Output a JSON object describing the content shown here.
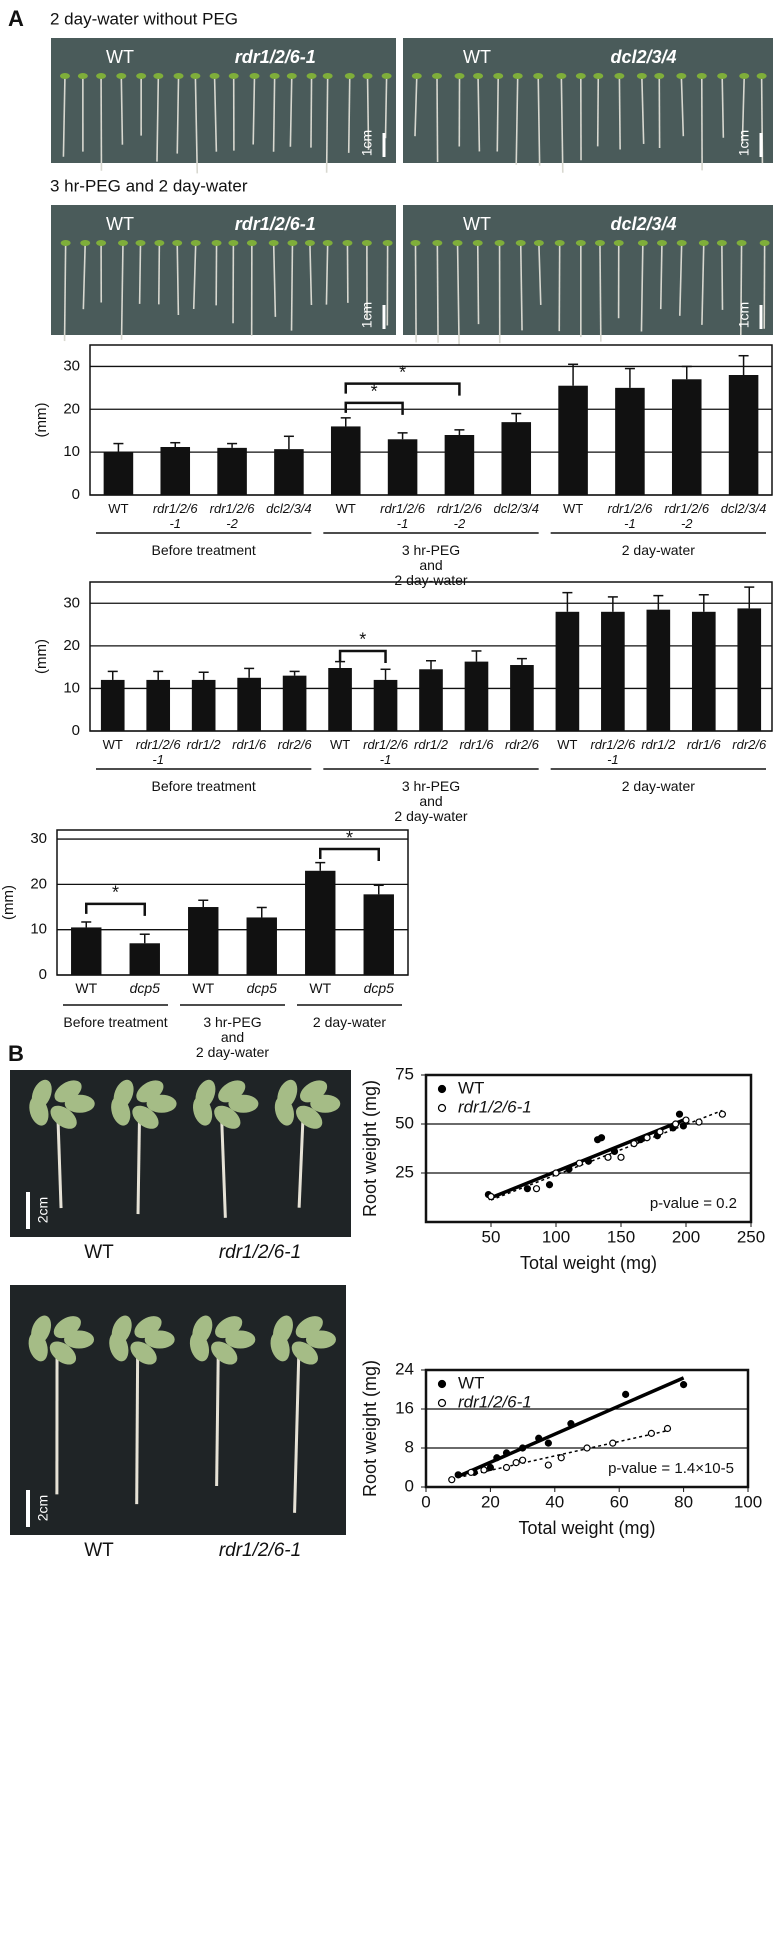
{
  "panel_a": {
    "label": "A",
    "rows": [
      {
        "title": "2 day-water without PEG",
        "photos": [
          {
            "genotypes": [
              "WT",
              "rdr1/2/6-1"
            ],
            "scale": "1cm"
          },
          {
            "genotypes": [
              "WT",
              "dcl2/3/4"
            ],
            "scale": "1cm"
          }
        ]
      },
      {
        "title": "3 hr-PEG and 2 day-water",
        "photos": [
          {
            "genotypes": [
              "WT",
              "rdr1/2/6-1"
            ],
            "scale": "1cm"
          },
          {
            "genotypes": [
              "WT",
              "dcl2/3/4"
            ],
            "scale": "1cm"
          }
        ]
      }
    ]
  },
  "chart_data": [
    {
      "type": "bar",
      "ylabel": "(mm)",
      "color": "#111111",
      "grid": true,
      "ylim": [
        0,
        35
      ],
      "yticks": [
        0,
        10,
        20,
        30
      ],
      "categories": [
        "WT",
        "rdr1/2/6\n-1",
        "rdr1/2/6\n-2",
        "dcl2/3/4",
        "WT",
        "rdr1/2/6\n-1",
        "rdr1/2/6\n-2",
        "dcl2/3/4",
        "WT",
        "rdr1/2/6\n-1",
        "rdr1/2/6\n-2",
        "dcl2/3/4"
      ],
      "groups": [
        "Before treatment",
        "3 hr-PEG\nand\n2 day-water",
        "2 day-water"
      ],
      "values": [
        10,
        11.2,
        11,
        10.7,
        16,
        13,
        14,
        17,
        25.5,
        25,
        27,
        28
      ],
      "errors": [
        2,
        1,
        1,
        3,
        2,
        1.5,
        1.2,
        2,
        5,
        4.5,
        3,
        4.5
      ],
      "annotations": [
        "*",
        "*"
      ]
    },
    {
      "type": "bar",
      "ylabel": "(mm)",
      "color": "#111111",
      "grid": true,
      "ylim": [
        0,
        35
      ],
      "yticks": [
        0,
        10,
        20,
        30
      ],
      "categories": [
        "WT",
        "rdr1/2/6\n-1",
        "rdr1/2",
        "rdr1/6",
        "rdr2/6",
        "WT",
        "rdr1/2/6\n-1",
        "rdr1/2",
        "rdr1/6",
        "rdr2/6",
        "WT",
        "rdr1/2/6\n-1",
        "rdr1/2",
        "rdr1/6",
        "rdr2/6"
      ],
      "groups": [
        "Before treatment",
        "3 hr-PEG\nand\n2 day-water",
        "2 day-water"
      ],
      "values": [
        12,
        12,
        12,
        12.5,
        13,
        14.8,
        12,
        14.5,
        16.3,
        15.5,
        28,
        28,
        28.5,
        28,
        28.8
      ],
      "errors": [
        2,
        2,
        1.8,
        2.2,
        1,
        1.5,
        2.5,
        2,
        2.5,
        1.5,
        4.5,
        3.5,
        3.3,
        4,
        5
      ],
      "annotations": [
        "*"
      ]
    },
    {
      "type": "bar",
      "ylabel": "(mm)",
      "color": "#111111",
      "grid": true,
      "ylim": [
        0,
        32
      ],
      "yticks": [
        0,
        10,
        20,
        30
      ],
      "categories": [
        "WT",
        "dcp5",
        "WT",
        "dcp5",
        "WT",
        "dcp5"
      ],
      "groups": [
        "Before treatment",
        "3 hr-PEG\nand\n2 day-water",
        "2 day-water"
      ],
      "values": [
        10.5,
        7,
        15,
        12.7,
        23,
        17.8
      ],
      "errors": [
        1.2,
        2,
        1.5,
        2.2,
        1.8,
        2
      ],
      "annotations": [
        "*",
        "*"
      ]
    },
    {
      "type": "scatter",
      "xlabel": "Total weight (mg)",
      "ylabel": "Root weight (mg)",
      "grid": true,
      "legend": "top-left",
      "xlim": [
        0,
        250
      ],
      "xticks": [
        50,
        100,
        150,
        200,
        250
      ],
      "ylim": [
        0,
        75
      ],
      "yticks": [
        25,
        50,
        75
      ],
      "annotation": "p-value =  0.2",
      "series": [
        {
          "name": "WT",
          "color": "#000000",
          "marker": "filled",
          "trend": "solid",
          "x": [
            48,
            78,
            95,
            110,
            125,
            132,
            135,
            145,
            165,
            178,
            190,
            195,
            198
          ],
          "values": [
            14,
            17,
            19,
            27,
            31,
            42,
            43,
            36,
            42,
            44,
            48,
            55,
            49
          ]
        },
        {
          "name": "rdr1/2/6-1",
          "color": "#000000",
          "marker": "open",
          "trend": "dashed",
          "x": [
            50,
            85,
            100,
            118,
            140,
            150,
            160,
            170,
            180,
            192,
            200,
            210,
            228
          ],
          "values": [
            13,
            17,
            25,
            30,
            33,
            33,
            40,
            43,
            46,
            50,
            52,
            51,
            55
          ]
        }
      ]
    },
    {
      "type": "scatter",
      "xlabel": "Total weight (mg)",
      "ylabel": "Root weight (mg)",
      "grid": true,
      "legend": "top-left",
      "xlim": [
        0,
        100
      ],
      "xticks": [
        0,
        20,
        40,
        60,
        80,
        100
      ],
      "ylim": [
        0,
        24
      ],
      "yticks": [
        0,
        8,
        16,
        24
      ],
      "annotation": "p-value =  1.4×10-5",
      "series": [
        {
          "name": "WT",
          "color": "#000000",
          "marker": "filled",
          "trend": "solid",
          "x": [
            10,
            15,
            20,
            22,
            25,
            30,
            35,
            38,
            45,
            62,
            80
          ],
          "values": [
            2.5,
            3,
            4,
            6,
            7,
            8,
            10,
            9,
            13,
            19,
            21
          ]
        },
        {
          "name": "rdr1/2/6-1",
          "color": "#000000",
          "marker": "open",
          "trend": "dashed",
          "x": [
            8,
            14,
            18,
            25,
            28,
            30,
            38,
            42,
            50,
            58,
            70,
            75
          ],
          "values": [
            1.5,
            3,
            3.5,
            4,
            5,
            5.5,
            4.5,
            6,
            8,
            9,
            11,
            12
          ]
        }
      ]
    }
  ],
  "panel_b": {
    "label": "B",
    "photos": [
      {
        "genotypes": [
          "WT",
          "rdr1/2/6-1"
        ],
        "scale": "2cm"
      },
      {
        "genotypes": [
          "WT",
          "rdr1/2/6-1"
        ],
        "scale": "2cm"
      }
    ]
  }
}
